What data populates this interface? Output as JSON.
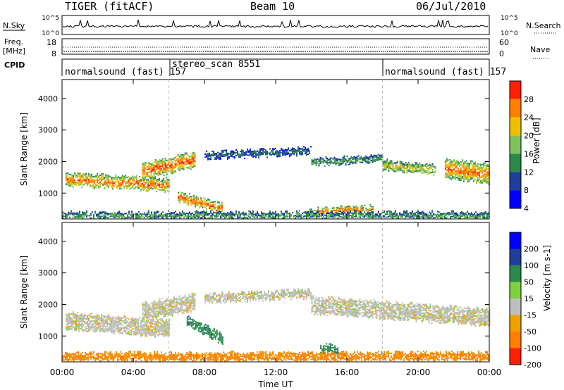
{
  "header": {
    "title": "TIGER (fitACF)",
    "beam": "Beam 10",
    "date": "06/Jul/2010"
  },
  "side_labels": {
    "nsky": "N.Sky",
    "nsearch": "N.Search",
    "freq": "Freq.",
    "freq_unit": "[MHz]",
    "nave": "Nave",
    "cpid": "CPID",
    "power_unit": "Power [dB]",
    "velocity_unit": "Velocity [m s-1]"
  },
  "cpid_segments": [
    {
      "label": "normalsound (fast) 157",
      "start": "00:00"
    },
    {
      "label": "stereo_scan 8551",
      "start": "06:00"
    },
    {
      "label": "normalsound (fast) 157",
      "start": "18:00"
    }
  ],
  "chart_data": [
    {
      "type": "line",
      "name": "noise-panel",
      "left_ticks": [
        "10^5",
        "10^0"
      ],
      "right_ticks": [
        "10^5",
        "10^0"
      ]
    },
    {
      "type": "line",
      "name": "frequency-panel",
      "left_ticks": [
        "18",
        "8"
      ],
      "right_ticks": [
        "60",
        "0"
      ]
    },
    {
      "type": "heatmap",
      "name": "power",
      "xlabel": "",
      "ylabel": "Slant Range [km]",
      "x_range": [
        "00:00",
        "24:00"
      ],
      "ylim": [
        180,
        4600
      ],
      "y_ticks": [
        "1000",
        "2000",
        "3000",
        "4000"
      ],
      "colorbar_label": "Power [dB]",
      "colorbar_ticks": [
        "4",
        "8",
        "12",
        "16",
        "20",
        "24",
        "28"
      ],
      "colorbar_range": [
        0,
        30
      ],
      "colorbar_colors": [
        "#0000ff",
        "#1f3f9c",
        "#2b8a4a",
        "#7fc25b",
        "#f0c000",
        "#ff7f00",
        "#ff2000"
      ],
      "echo_bands": [
        {
          "start_h": 0.2,
          "end_h": 6.0,
          "from_km": 1450,
          "to_km": 1250,
          "width_km": 400,
          "power_db": 26
        },
        {
          "start_h": 4.5,
          "end_h": 7.5,
          "from_km": 1700,
          "to_km": 2100,
          "width_km": 450,
          "power_db": 28
        },
        {
          "start_h": 6.5,
          "end_h": 9.0,
          "from_km": 900,
          "to_km": 500,
          "width_km": 300,
          "power_db": 27
        },
        {
          "start_h": 8.0,
          "end_h": 14.0,
          "from_km": 2200,
          "to_km": 2350,
          "width_km": 200,
          "power_db": 10
        },
        {
          "start_h": 13.8,
          "end_h": 17.5,
          "from_km": 400,
          "to_km": 500,
          "width_km": 200,
          "power_db": 26
        },
        {
          "start_h": 14.0,
          "end_h": 18.0,
          "from_km": 2000,
          "to_km": 2100,
          "width_km": 200,
          "power_db": 14
        },
        {
          "start_h": 18.0,
          "end_h": 21.0,
          "from_km": 1900,
          "to_km": 1750,
          "width_km": 300,
          "power_db": 20
        },
        {
          "start_h": 21.5,
          "end_h": 24.0,
          "from_km": 1800,
          "to_km": 1600,
          "width_km": 600,
          "power_db": 26
        },
        {
          "start_h": 0.0,
          "end_h": 24.0,
          "from_km": 300,
          "to_km": 300,
          "width_km": 200,
          "power_db": 14
        }
      ]
    },
    {
      "type": "heatmap",
      "name": "velocity",
      "xlabel": "Time UT",
      "ylabel": "Slant Range [km]",
      "x_range": [
        "00:00",
        "24:00"
      ],
      "x_ticks": [
        "00:00",
        "04:00",
        "08:00",
        "12:00",
        "16:00",
        "20:00",
        "00:00"
      ],
      "ylim": [
        180,
        4600
      ],
      "y_ticks": [
        "1000",
        "2000",
        "3000",
        "4000"
      ],
      "colorbar_label": "Velocity [m s-1]",
      "colorbar_ticks": [
        "200",
        "100",
        "50",
        "15",
        "-15",
        "-50",
        "-100",
        "-200"
      ],
      "colorbar_colors": [
        "#0000ff",
        "#1f3f9c",
        "#2b8a4a",
        "#7fd040",
        "#bfbfbf",
        "#f0a000",
        "#ff7f00",
        "#ff2000"
      ],
      "echo_bands": [
        {
          "start_h": 0.2,
          "end_h": 6.0,
          "from_km": 1500,
          "to_km": 1250,
          "width_km": 500,
          "velocity": 0
        },
        {
          "start_h": 4.5,
          "end_h": 7.5,
          "from_km": 1800,
          "to_km": 2100,
          "width_km": 500,
          "velocity": 0
        },
        {
          "start_h": 7.0,
          "end_h": 9.0,
          "from_km": 1500,
          "to_km": 900,
          "width_km": 300,
          "velocity": 60
        },
        {
          "start_h": 8.0,
          "end_h": 14.0,
          "from_km": 2200,
          "to_km": 2350,
          "width_km": 250,
          "velocity": 0
        },
        {
          "start_h": 14.5,
          "end_h": 15.5,
          "from_km": 600,
          "to_km": 600,
          "width_km": 250,
          "velocity": 60
        },
        {
          "start_h": 14.0,
          "end_h": 24.0,
          "from_km": 2000,
          "to_km": 1600,
          "width_km": 500,
          "velocity": 0
        },
        {
          "start_h": 0.0,
          "end_h": 24.0,
          "from_km": 350,
          "to_km": 350,
          "width_km": 250,
          "velocity": -40
        }
      ]
    }
  ]
}
